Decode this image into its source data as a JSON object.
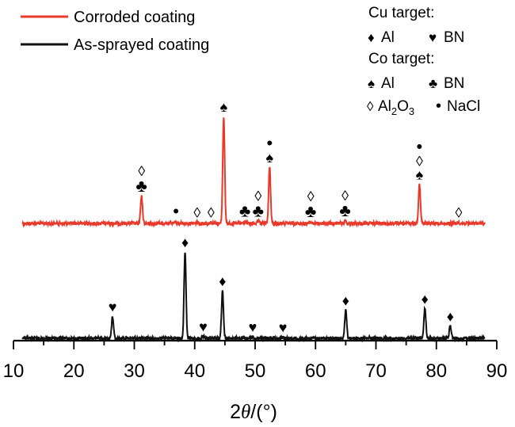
{
  "chart_data": {
    "type": "line",
    "xlabel_prefix": "2",
    "xlabel_theta": "θ",
    "xlabel_suffix": "/(°)",
    "xlim": [
      10,
      90
    ],
    "x_ticks": [
      "10",
      "20",
      "30",
      "40",
      "50",
      "60",
      "70",
      "80",
      "90"
    ],
    "y_axis_shown": false,
    "grid": false,
    "legend_position": "top-left",
    "series": [
      {
        "name": "Corroded coating",
        "color": "#e8392b",
        "baseline": 1.0,
        "peaks": [
          {
            "x": 31.2,
            "h": 0.52
          },
          {
            "x": 36.9,
            "h": 0.03
          },
          {
            "x": 40.4,
            "h": 0.02
          },
          {
            "x": 42.7,
            "h": 0.02
          },
          {
            "x": 44.8,
            "h": 2.08
          },
          {
            "x": 48.3,
            "h": 0.04
          },
          {
            "x": 50.5,
            "h": 0.04
          },
          {
            "x": 52.4,
            "h": 1.09
          },
          {
            "x": 59.2,
            "h": 0.03
          },
          {
            "x": 64.9,
            "h": 0.05
          },
          {
            "x": 77.2,
            "h": 0.76
          },
          {
            "x": 83.7,
            "h": 0.02
          }
        ],
        "markers": [
          {
            "x": 31.2,
            "symbols": [
              "♣",
              "◊"
            ]
          },
          {
            "x": 36.9,
            "symbols": [
              "•"
            ]
          },
          {
            "x": 40.4,
            "symbols": [
              "◊"
            ]
          },
          {
            "x": 42.7,
            "symbols": [
              "◊"
            ]
          },
          {
            "x": 44.8,
            "symbols": [
              "♠"
            ]
          },
          {
            "x": 48.3,
            "symbols": [
              "♣"
            ]
          },
          {
            "x": 50.5,
            "symbols": [
              "♣",
              "◊"
            ]
          },
          {
            "x": 52.4,
            "symbols": [
              "♠",
              "•"
            ]
          },
          {
            "x": 59.2,
            "symbols": [
              "♣",
              "◊"
            ]
          },
          {
            "x": 64.9,
            "symbols": [
              "♣",
              "◊"
            ]
          },
          {
            "x": 77.2,
            "symbols": [
              "♠",
              "◊",
              "•"
            ]
          },
          {
            "x": 83.7,
            "symbols": [
              "◊"
            ]
          }
        ]
      },
      {
        "name": "As-sprayed coating",
        "color": "#111111",
        "baseline": 0,
        "peaks": [
          {
            "x": 26.4,
            "h": 0.42
          },
          {
            "x": 38.4,
            "h": 1.68
          },
          {
            "x": 41.4,
            "h": 0.04
          },
          {
            "x": 44.6,
            "h": 0.92
          },
          {
            "x": 49.6,
            "h": 0.03
          },
          {
            "x": 54.6,
            "h": 0.02
          },
          {
            "x": 65.0,
            "h": 0.55
          },
          {
            "x": 78.1,
            "h": 0.58
          },
          {
            "x": 82.3,
            "h": 0.24
          }
        ],
        "markers": [
          {
            "x": 26.4,
            "symbols": [
              "♥"
            ]
          },
          {
            "x": 38.4,
            "symbols": [
              "♦"
            ]
          },
          {
            "x": 41.4,
            "symbols": [
              "♥"
            ]
          },
          {
            "x": 44.6,
            "symbols": [
              "♦"
            ]
          },
          {
            "x": 49.6,
            "symbols": [
              "♥"
            ]
          },
          {
            "x": 54.6,
            "symbols": [
              "♥"
            ]
          },
          {
            "x": 65.0,
            "symbols": [
              "♦"
            ]
          },
          {
            "x": 78.1,
            "symbols": [
              "♦"
            ]
          },
          {
            "x": 82.3,
            "symbols": [
              "♦"
            ]
          }
        ]
      }
    ],
    "phase_key": {
      "cu_title": "Cu target:",
      "cu_al_symbol": "♦",
      "cu_al_label": "Al",
      "cu_bn_symbol": "♥",
      "cu_bn_label": "BN",
      "co_title": "Co target:",
      "co_al_symbol": "♠",
      "co_al_label": "Al",
      "co_bn_symbol": "♣",
      "co_bn_label": "BN",
      "al2o3_symbol": "◊",
      "al2o3_label_1": "Al",
      "al2o3_sub_1": "2",
      "al2o3_label_2": "O",
      "al2o3_sub_2": "3",
      "nacl_symbol": "•",
      "nacl_label": "NaCl"
    }
  }
}
